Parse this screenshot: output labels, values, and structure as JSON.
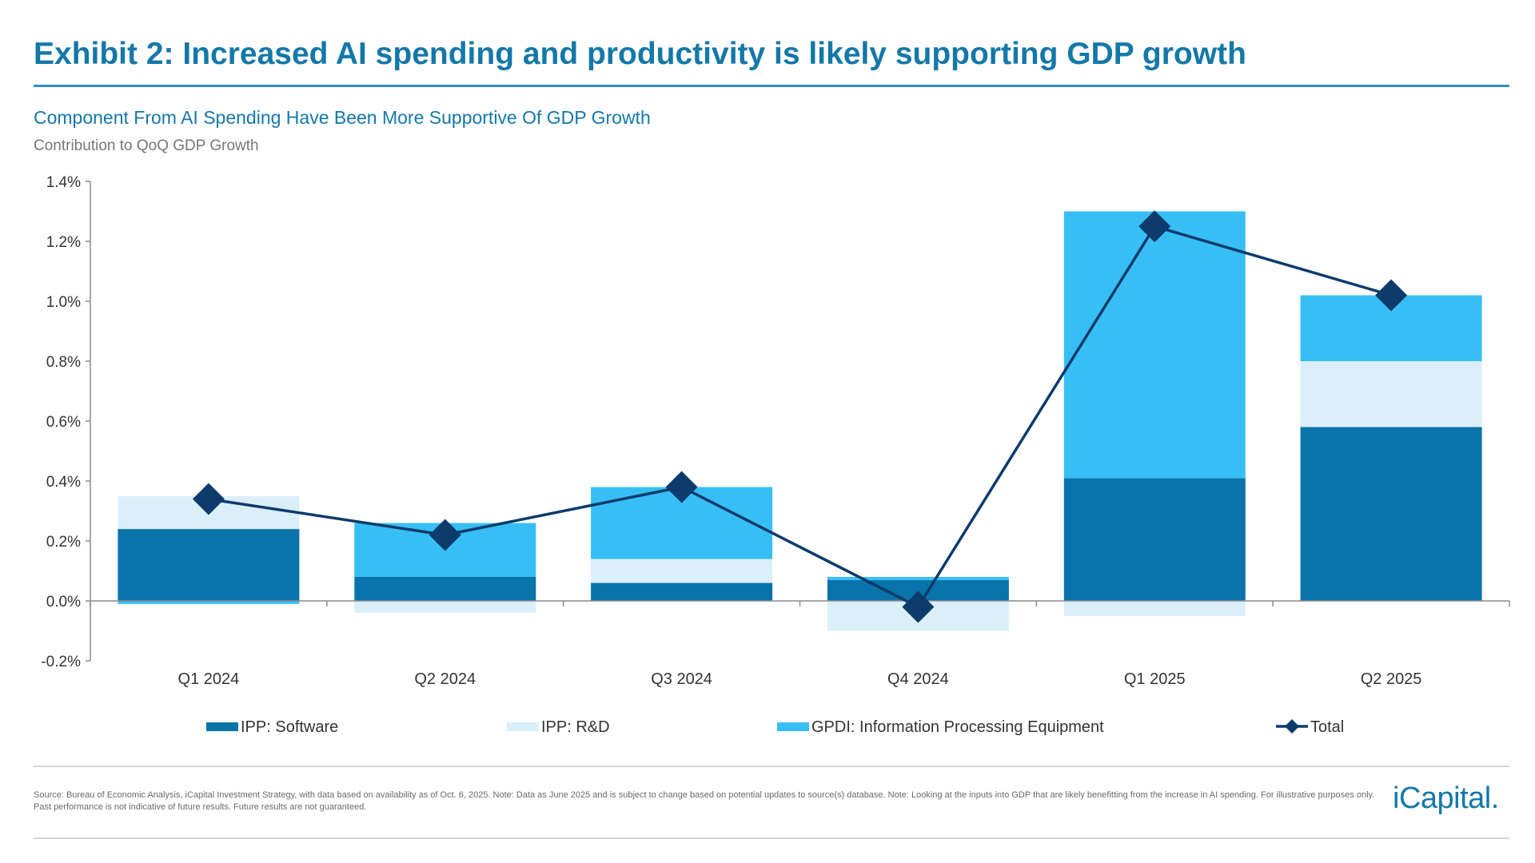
{
  "header": {
    "title": "Exhibit 2: Increased AI spending and productivity is likely supporting GDP growth",
    "subtitle": "Component From AI Spending Have Been More Supportive Of GDP Growth",
    "units_label": "Contribution to QoQ GDP Growth"
  },
  "chart_data": {
    "type": "bar",
    "stacked": true,
    "title": "Component From AI Spending Have Been More Supportive Of GDP Growth",
    "ylabel": "Contribution to QoQ GDP Growth",
    "xlabel": "",
    "categories": [
      "Q1 2024",
      "Q2 2024",
      "Q3 2024",
      "Q4 2024",
      "Q1 2025",
      "Q2 2025"
    ],
    "series": [
      {
        "name": "IPP: Software",
        "type": "bar",
        "color": "#0a73aa",
        "values": [
          0.24,
          0.08,
          0.06,
          0.07,
          0.41,
          0.58
        ]
      },
      {
        "name": "IPP: R&D",
        "type": "bar",
        "color": "#daeff9",
        "values": [
          0.11,
          -0.04,
          0.08,
          -0.1,
          -0.05,
          0.22
        ]
      },
      {
        "name": "GPDI: Information Processing Equipment",
        "type": "bar",
        "color": "#37bff5",
        "values": [
          -0.01,
          0.18,
          0.24,
          0.01,
          0.89,
          0.22
        ]
      },
      {
        "name": "Total",
        "type": "line",
        "marker": "diamond",
        "color": "#0d3b6b",
        "values": [
          0.34,
          0.22,
          0.38,
          -0.02,
          1.25,
          1.02
        ]
      }
    ],
    "ylim": [
      -0.2,
      1.4
    ],
    "yticks": [
      -0.2,
      0.0,
      0.2,
      0.4,
      0.6,
      0.8,
      1.0,
      1.2,
      1.4
    ],
    "ytick_labels": [
      "-0.2%",
      "0.0%",
      "0.2%",
      "0.4%",
      "0.6%",
      "0.8%",
      "1.0%",
      "1.2%",
      "1.4%"
    ],
    "grid": false,
    "legend_position": "bottom"
  },
  "footer": {
    "source": "Source: Bureau of Economic Analysis, iCapital Investment Strategy, with data based on availability as of Oct. 6, 2025. Note: Data as June 2025 and is subject to change based on potential updates to source(s) database. Note: Looking at the inputs into GDP that are likely benefitting from the increase in AI spending. For illustrative purposes only. Past performance is not indicative of future results. Future results are not guaranteed.",
    "logo_text": "iCapital."
  }
}
